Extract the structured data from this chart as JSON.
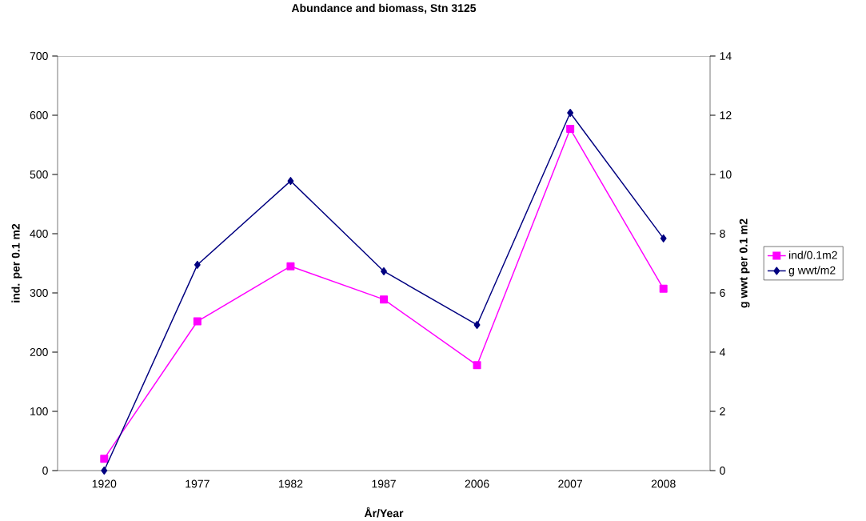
{
  "chart_data": {
    "type": "line",
    "title": "Abundance and biomass, Stn 3125",
    "xlabel": "År/Year",
    "ylabel": "ind. per 0.1 m2",
    "y2label": "g wwt per 0.1 m2",
    "categories": [
      "1920",
      "1977",
      "1982",
      "1987",
      "2006",
      "2007",
      "2008"
    ],
    "series": [
      {
        "name": "ind/0.1m2",
        "color": "#ff00ff",
        "marker": "square",
        "values": [
          20,
          252,
          345,
          289,
          178,
          577,
          307
        ]
      },
      {
        "name": "g wwt/m2",
        "color": "#000080",
        "marker": "diamond",
        "axis": "y2",
        "values": [
          0,
          6.95,
          9.78,
          6.73,
          4.92,
          12.08,
          7.84
        ]
      }
    ],
    "ylim": [
      0,
      700
    ],
    "yticks": [
      0,
      100,
      200,
      300,
      400,
      500,
      600,
      700
    ],
    "y2lim": [
      0,
      14
    ],
    "y2ticks": [
      0,
      2,
      4,
      6,
      8,
      10,
      12,
      14
    ],
    "grid": false,
    "legend": "right"
  }
}
